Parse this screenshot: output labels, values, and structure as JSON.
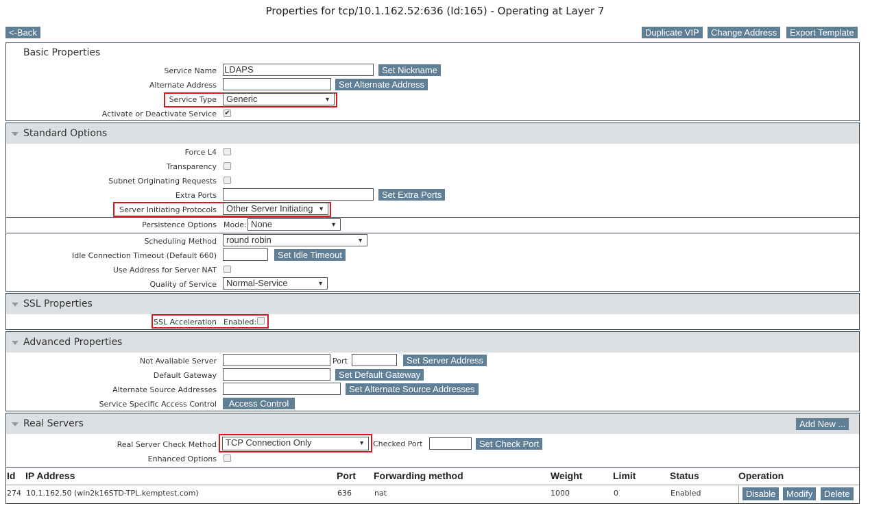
{
  "title": "Properties for tcp/10.1.162.52:636 (Id:165) - Operating at Layer 7",
  "toolbar": {
    "back": "<-Back",
    "duplicate": "Duplicate VIP",
    "change_address": "Change Address",
    "export": "Export Template"
  },
  "basic": {
    "title": "Basic Properties",
    "service_name_label": "Service Name",
    "service_name": "LDAPS",
    "set_nickname": "Set Nickname",
    "alt_label": "Alternate Address",
    "alt_value": "",
    "set_alt": "Set Alternate Address",
    "type_label": "Service Type",
    "type_value": "Generic",
    "activate_label": "Activate or Deactivate Service",
    "activate_checked": true
  },
  "standard": {
    "title": "Standard Options",
    "force_l4": "Force L4",
    "transparency": "Transparency",
    "subnet": "Subnet Originating Requests",
    "extra_ports_label": "Extra Ports",
    "set_extra_ports": "Set Extra Ports",
    "sip_label": "Server Initiating Protocols",
    "sip_value": "Other Server Initiating",
    "persist_label": "Persistence Options",
    "mode_label": "Mode:",
    "mode_value": "None",
    "sched_label": "Scheduling Method",
    "sched_value": "round robin",
    "idle_label": "Idle Connection Timeout (Default 660)",
    "set_idle": "Set Idle Timeout",
    "nat_label": "Use Address for Server NAT",
    "qos_label": "Quality of Service",
    "qos_value": "Normal-Service"
  },
  "ssl": {
    "title": "SSL Properties",
    "accel_label": "SSL Acceleration",
    "enabled_label": "Enabled:"
  },
  "advanced": {
    "title": "Advanced Properties",
    "nas_label": "Not Available Server",
    "port_label": "Port",
    "set_server": "Set Server Address",
    "gw_label": "Default Gateway",
    "set_gw": "Set Default Gateway",
    "alt_src_label": "Alternate Source Addresses",
    "set_alt_src": "Set Alternate Source Addresses",
    "acl_label": "Service Specific Access Control",
    "acl_button": "Access Control"
  },
  "real": {
    "title": "Real Servers",
    "add_new": "Add New ...",
    "check_label": "Real Server Check Method",
    "check_value": "TCP Connection Only",
    "checked_port_label": "Checked Port",
    "set_check_port": "Set Check Port",
    "enhanced_label": "Enhanced Options",
    "columns": [
      "Id",
      "IP Address",
      "Port",
      "Forwarding method",
      "Weight",
      "Limit",
      "Status",
      "Operation"
    ],
    "rows": [
      {
        "id": "274",
        "ip": "10.1.162.50 (win2k16STD-TPL.kemptest.com)",
        "port": "636",
        "fwd": "nat",
        "weight": "1000",
        "limit": "0",
        "status": "Enabled",
        "disable": "Disable",
        "modify": "Modify",
        "delete": "Delete"
      }
    ]
  },
  "colors": {
    "button": "#5f7f96",
    "header": "#dcdfe1",
    "highlight": "#e0141e"
  }
}
